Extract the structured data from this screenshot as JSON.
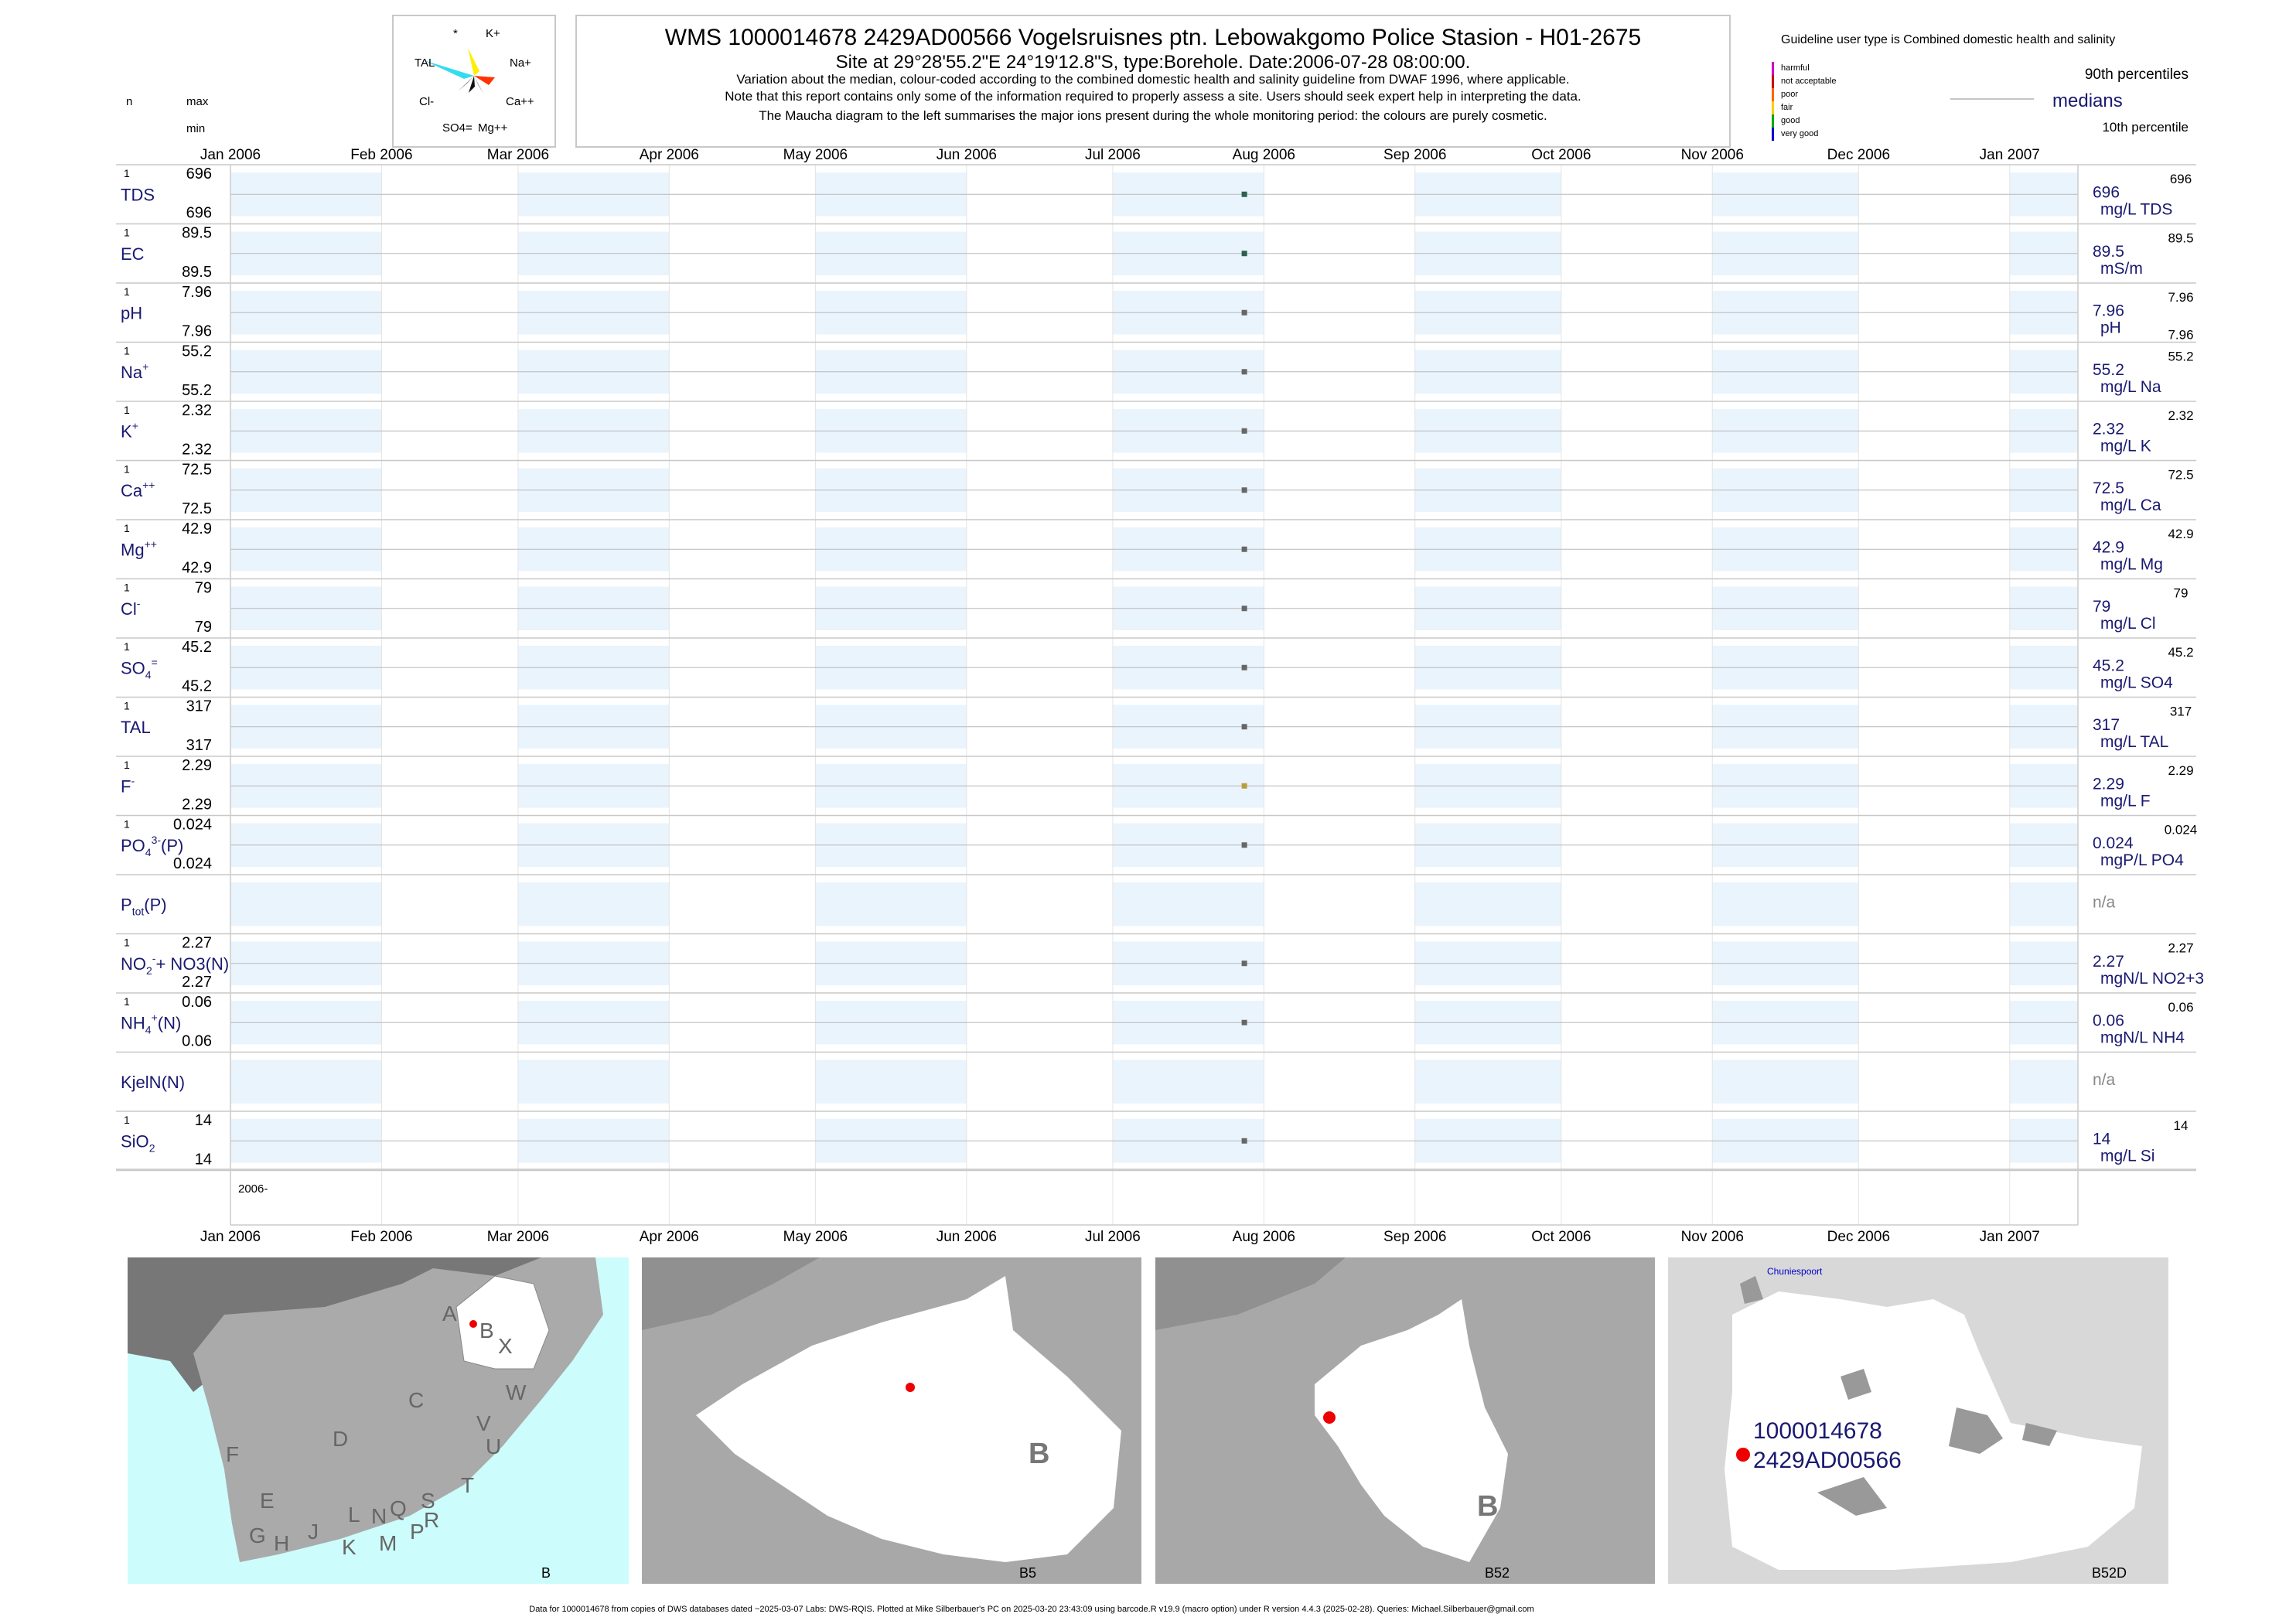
{
  "header": {
    "title": "WMS 1000014678 2429AD00566 Vogelsruisnes ptn. Lebowakgomo Police Stasion - H01-2675",
    "site": "Site at 29°28'55.2\"E 24°19'12.8\"S, type:Borehole. Date:2006-07-28 08:00:00.",
    "note1": "Variation about the median,  colour-coded according to the combined domestic health and salinity guideline from DWAF 1996, where applicable.",
    "note2": "Note that this report contains only some of the information required to properly assess a site. Users should seek expert help in interpreting the data.",
    "note3": "The Maucha diagram to the left summarises the major ions present during the whole monitoring period: the colours are purely cosmetic."
  },
  "maucha": {
    "labels": [
      "*",
      "K+",
      "TAL",
      "Na+",
      "Cl-",
      "Ca++",
      "SO4=",
      "Mg++"
    ],
    "colors": [
      "#33ddee",
      "#ffee00",
      "#ff3300",
      "#111111",
      "#888888",
      "#bbbbbb"
    ]
  },
  "left_header": {
    "n": "n",
    "max": "max",
    "min": "min"
  },
  "legend": {
    "guideline": "Guideline user type is Combined domestic health and salinity",
    "levels": [
      {
        "label": "harmful",
        "color": "#cc00cc"
      },
      {
        "label": "not acceptable",
        "color": "#cc0000"
      },
      {
        "label": "poor",
        "color": "#ff6600"
      },
      {
        "label": "fair",
        "color": "#ffcc00"
      },
      {
        "label": "good",
        "color": "#00aa00"
      },
      {
        "label": "very good",
        "color": "#0000cc"
      }
    ],
    "p90": "90th percentiles",
    "medians": "medians",
    "p10": "10th percentile"
  },
  "chart_data": {
    "type": "scatter",
    "x_range": [
      "2006-01-01",
      "2007-01-15"
    ],
    "x_ticks": [
      "Jan 2006",
      "Feb 2006",
      "Mar 2006",
      "Apr 2006",
      "May 2006",
      "Jun 2006",
      "Jul 2006",
      "Aug 2006",
      "Sep 2006",
      "Oct 2006",
      "Nov 2006",
      "Dec 2006",
      "Jan 2007"
    ],
    "x_tick_dates": [
      "2006-01-01",
      "2006-02-01",
      "2006-03-01",
      "2006-04-01",
      "2006-05-01",
      "2006-06-01",
      "2006-07-01",
      "2006-08-01",
      "2006-09-01",
      "2006-10-01",
      "2006-11-01",
      "2006-12-01",
      "2007-01-01"
    ],
    "year_label": "2006-",
    "sample_date": "2006-07-28",
    "rows": [
      {
        "name": "TDS",
        "sup": "",
        "sub": "",
        "n": "1",
        "max": "696",
        "min": "696",
        "median": "696",
        "p90": "696",
        "p10": "",
        "unit": "mg/L TDS",
        "color": "#2e5e4e"
      },
      {
        "name": "EC",
        "sup": "",
        "sub": "",
        "n": "1",
        "max": "89.5",
        "min": "89.5",
        "median": "89.5",
        "p90": "89.5",
        "p10": "",
        "unit": "mS/m",
        "color": "#2e5e4e"
      },
      {
        "name": "pH",
        "sup": "",
        "sub": "",
        "n": "1",
        "max": "7.96",
        "min": "7.96",
        "median": "7.96",
        "p90": "7.96",
        "p10": "7.96",
        "unit": "pH",
        "color": "#666666"
      },
      {
        "name": "Na",
        "sup": "+",
        "sub": "",
        "n": "1",
        "max": "55.2",
        "min": "55.2",
        "median": "55.2",
        "p90": "55.2",
        "p10": "",
        "unit": "mg/L Na",
        "color": "#666666"
      },
      {
        "name": "K",
        "sup": "+",
        "sub": "",
        "n": "1",
        "max": "2.32",
        "min": "2.32",
        "median": "2.32",
        "p90": "2.32",
        "p10": "",
        "unit": "mg/L K",
        "color": "#666666"
      },
      {
        "name": "Ca",
        "sup": "++",
        "sub": "",
        "n": "1",
        "max": "72.5",
        "min": "72.5",
        "median": "72.5",
        "p90": "72.5",
        "p10": "",
        "unit": "mg/L Ca",
        "color": "#666666"
      },
      {
        "name": "Mg",
        "sup": "++",
        "sub": "",
        "n": "1",
        "max": "42.9",
        "min": "42.9",
        "median": "42.9",
        "p90": "42.9",
        "p10": "",
        "unit": "mg/L Mg",
        "color": "#666666"
      },
      {
        "name": "Cl",
        "sup": "-",
        "sub": "",
        "n": "1",
        "max": "79",
        "min": "79",
        "median": "79",
        "p90": "79",
        "p10": "",
        "unit": "mg/L Cl",
        "color": "#666666"
      },
      {
        "name": "SO",
        "sup": "=",
        "sub": "4",
        "n": "1",
        "max": "45.2",
        "min": "45.2",
        "median": "45.2",
        "p90": "45.2",
        "p10": "",
        "unit": "mg/L SO4",
        "color": "#666666"
      },
      {
        "name": "TAL",
        "sup": "",
        "sub": "",
        "n": "1",
        "max": "317",
        "min": "317",
        "median": "317",
        "p90": "317",
        "p10": "",
        "unit": "mg/L TAL",
        "color": "#666666"
      },
      {
        "name": "F",
        "sup": "-",
        "sub": "",
        "n": "1",
        "max": "2.29",
        "min": "2.29",
        "median": "2.29",
        "p90": "2.29",
        "p10": "",
        "unit": "mg/L F",
        "color": "#b8a038"
      },
      {
        "name": "PO",
        "sup": "3-",
        "sub": "4",
        "suffix": "(P)",
        "n": "1",
        "max": "0.024",
        "min": "0.024",
        "median": "0.024",
        "p90": "0.024",
        "p10": "",
        "unit": "mgP/L PO4",
        "color": "#666666"
      },
      {
        "name": "P",
        "sup": "",
        "sub": "tot",
        "suffix": "(P)",
        "n": "",
        "max": "",
        "min": "",
        "median": "n/a",
        "p90": "",
        "p10": "",
        "unit": "",
        "color": "#666666"
      },
      {
        "name": "NO",
        "sup": "-",
        "sub": "2",
        "suffix": "+ NO3(N)",
        "n": "1",
        "max": "2.27",
        "min": "2.27",
        "median": "2.27",
        "p90": "2.27",
        "p10": "",
        "unit": "mgN/L NO2+3",
        "color": "#666666"
      },
      {
        "name": "NH",
        "sup": "+",
        "sub": "4",
        "suffix": "(N)",
        "n": "1",
        "max": "0.06",
        "min": "0.06",
        "median": "0.06",
        "p90": "0.06",
        "p10": "",
        "unit": "mgN/L NH4",
        "color": "#666666"
      },
      {
        "name": "KjelN(N)",
        "sup": "",
        "sub": "",
        "n": "",
        "max": "",
        "min": "",
        "median": "n/a",
        "p90": "",
        "p10": "",
        "unit": "",
        "color": "#666666"
      },
      {
        "name": "SiO",
        "sup": "",
        "sub": "2",
        "n": "1",
        "max": "14",
        "min": "14",
        "median": "14",
        "p90": "14",
        "p10": "",
        "unit": "mg/L Si",
        "color": "#666666"
      }
    ]
  },
  "maps": [
    {
      "caption": "B",
      "letters": [
        "A",
        "B",
        "X",
        "W",
        "C",
        "V",
        "U",
        "D",
        "T",
        "F",
        "E",
        "S",
        "L",
        "N",
        "Q",
        "R",
        "G",
        "H",
        "J",
        "K",
        "M",
        "P"
      ]
    },
    {
      "caption": "B5",
      "letters": [
        "B"
      ]
    },
    {
      "caption": "B52",
      "letters": [
        "B"
      ]
    },
    {
      "caption": "B52D",
      "place": "Chuniespoort",
      "site_id1": "1000014678",
      "site_id2": "2429AD00566"
    }
  ],
  "footer": "Data for 1000014678 from copies of DWS databases dated ~2025-03-07 Labs: DWS-RQIS. Plotted at Mike Silberbauer's PC on 2025-03-20 23:43:09 using barcode.R v19.9 (macro option) under R version 4.4.3 (2025-02-28). Queries: Michael.Silberbauer@gmail.com"
}
